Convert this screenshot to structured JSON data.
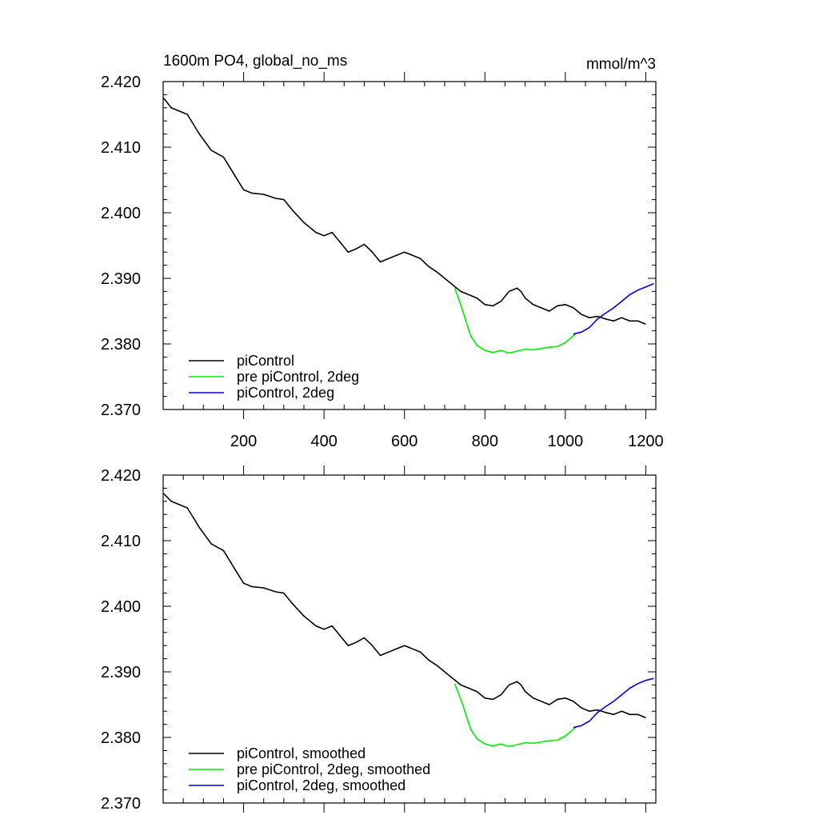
{
  "chart_data": [
    {
      "type": "line",
      "title": "1600m PO4, global_no_ms",
      "units": "mmol/m^3",
      "xlim": [
        0,
        1225
      ],
      "ylim": [
        2.37,
        2.42
      ],
      "yticks": [
        "2.370",
        "2.380",
        "2.390",
        "2.400",
        "2.410",
        "2.420"
      ],
      "xticks": [
        "200",
        "400",
        "600",
        "800",
        "1000",
        "1200"
      ],
      "legend": "bottom-left",
      "series": [
        {
          "name": "piControl",
          "color": "#000000",
          "x": [
            1,
            20,
            60,
            90,
            120,
            150,
            180,
            200,
            220,
            250,
            280,
            300,
            320,
            350,
            380,
            400,
            420,
            440,
            460,
            480,
            500,
            520,
            540,
            560,
            580,
            600,
            620,
            640,
            660,
            680,
            700,
            720,
            740,
            760,
            780,
            800,
            820,
            840,
            860,
            880,
            890,
            900,
            920,
            940,
            960,
            980,
            1000,
            1020,
            1040,
            1060,
            1080,
            1100,
            1120,
            1140,
            1160,
            1180,
            1200
          ],
          "y": [
            2.4175,
            2.416,
            2.415,
            2.412,
            2.4095,
            2.4085,
            2.4055,
            2.4035,
            2.403,
            2.4028,
            2.4022,
            2.402,
            2.4005,
            2.3985,
            2.397,
            2.3965,
            2.397,
            2.3955,
            2.394,
            2.3945,
            2.3952,
            2.394,
            2.3925,
            2.393,
            2.3935,
            2.394,
            2.3935,
            2.393,
            2.3918,
            2.391,
            2.39,
            2.389,
            2.388,
            2.3875,
            2.387,
            2.386,
            2.3858,
            2.3865,
            2.388,
            2.3885,
            2.388,
            2.387,
            2.386,
            2.3855,
            2.385,
            2.3858,
            2.386,
            2.3855,
            2.3845,
            2.384,
            2.3842,
            2.3838,
            2.3835,
            2.384,
            2.3835,
            2.3835,
            2.383
          ]
        },
        {
          "name": "pre piControl, 2deg",
          "color": "#00ee00",
          "x": [
            725,
            735,
            745,
            755,
            765,
            780,
            800,
            820,
            840,
            860,
            880,
            900,
            920,
            940,
            960,
            980,
            1000,
            1015,
            1025
          ],
          "y": [
            2.3885,
            2.3868,
            2.385,
            2.383,
            2.3812,
            2.3798,
            2.379,
            2.3787,
            2.379,
            2.3786,
            2.3789,
            2.3792,
            2.3791,
            2.3793,
            2.3795,
            2.3796,
            2.3802,
            2.381,
            2.3815
          ]
        },
        {
          "name": "piControl, 2deg",
          "color": "#0000ee",
          "x": [
            1020,
            1040,
            1060,
            1080,
            1100,
            1120,
            1140,
            1160,
            1180,
            1200,
            1220
          ],
          "y": [
            2.3815,
            2.3818,
            2.3825,
            2.3838,
            2.3847,
            2.3855,
            2.3865,
            2.3875,
            2.3882,
            2.3887,
            2.3892
          ]
        }
      ]
    },
    {
      "type": "line",
      "title": "",
      "xlim": [
        0,
        1225
      ],
      "ylim": [
        2.37,
        2.42
      ],
      "yticks": [
        "2.370",
        "2.380",
        "2.390",
        "2.400",
        "2.410",
        "2.420"
      ],
      "legend": "bottom-left",
      "series": [
        {
          "name": "piControl, smoothed",
          "color": "#000000",
          "x": [
            1,
            20,
            60,
            90,
            120,
            150,
            180,
            200,
            220,
            250,
            280,
            300,
            320,
            350,
            380,
            400,
            420,
            440,
            460,
            480,
            500,
            520,
            540,
            560,
            580,
            600,
            620,
            640,
            660,
            680,
            700,
            720,
            740,
            760,
            780,
            800,
            820,
            840,
            860,
            880,
            890,
            900,
            920,
            940,
            960,
            980,
            1000,
            1020,
            1040,
            1060,
            1080,
            1100,
            1120,
            1140,
            1160,
            1180,
            1200
          ],
          "y": [
            2.4172,
            2.416,
            2.415,
            2.412,
            2.4095,
            2.4085,
            2.4055,
            2.4035,
            2.403,
            2.4028,
            2.4022,
            2.402,
            2.4005,
            2.3985,
            2.397,
            2.3965,
            2.397,
            2.3955,
            2.394,
            2.3945,
            2.3952,
            2.394,
            2.3925,
            2.393,
            2.3935,
            2.394,
            2.3935,
            2.393,
            2.3918,
            2.391,
            2.39,
            2.389,
            2.388,
            2.3875,
            2.387,
            2.386,
            2.3858,
            2.3865,
            2.388,
            2.3885,
            2.388,
            2.387,
            2.386,
            2.3855,
            2.385,
            2.3858,
            2.386,
            2.3855,
            2.3845,
            2.384,
            2.3842,
            2.3838,
            2.3835,
            2.384,
            2.3835,
            2.3835,
            2.383
          ]
        },
        {
          "name": "pre piControl, 2deg, smoothed",
          "color": "#00ee00",
          "x": [
            725,
            735,
            745,
            755,
            765,
            780,
            800,
            820,
            840,
            860,
            880,
            900,
            920,
            940,
            960,
            980,
            1000,
            1015,
            1025
          ],
          "y": [
            2.3882,
            2.3866,
            2.385,
            2.383,
            2.3812,
            2.3798,
            2.379,
            2.3787,
            2.379,
            2.3786,
            2.3789,
            2.3792,
            2.3791,
            2.3793,
            2.3795,
            2.3796,
            2.3802,
            2.381,
            2.3815
          ]
        },
        {
          "name": "piControl, 2deg, smoothed",
          "color": "#0000ee",
          "x": [
            1020,
            1040,
            1060,
            1080,
            1100,
            1120,
            1140,
            1160,
            1180,
            1200,
            1220
          ],
          "y": [
            2.3815,
            2.3818,
            2.3825,
            2.3838,
            2.3847,
            2.3855,
            2.3865,
            2.3875,
            2.3882,
            2.3887,
            2.389
          ]
        }
      ]
    }
  ]
}
